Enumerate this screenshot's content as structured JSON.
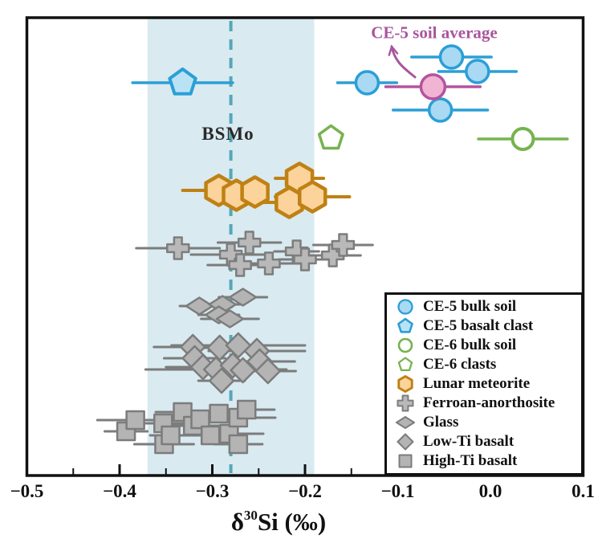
{
  "annotation": {
    "text": "CE-5 soil average",
    "color": "#a8569c"
  },
  "bsmo": {
    "label": "BSMo",
    "x": -0.28,
    "color": "#55a7b7",
    "text_color": "#2a2a2a"
  },
  "axis_title": {
    "delta": "δ",
    "superscript": "30",
    "rest": "Si (‰)"
  },
  "chart_data": {
    "type": "scatter",
    "title": "",
    "xlabel": "δ30Si (‰)",
    "ylabel": "",
    "xlim": [
      -0.5,
      0.1
    ],
    "x_ticks": [
      -0.5,
      -0.4,
      -0.3,
      -0.2,
      -0.1,
      0.0,
      0.1
    ],
    "x_tick_labels": [
      "−0.5",
      "−0.4",
      "−0.3",
      "−0.2",
      "−0.1",
      "0.0",
      "0.1"
    ],
    "minor_tick_step": 0.05,
    "grid": false,
    "legend_position": "lower right",
    "shaded_band": {
      "x_from": -0.37,
      "x_to": -0.19,
      "color": "#d9eaf1"
    },
    "reference_line": {
      "label": "BSMo",
      "x": -0.28,
      "style": "dashed",
      "color": "#55a7b7"
    },
    "series": [
      {
        "name": "CE-5 bulk soil",
        "in_legend": true,
        "marker": {
          "type": "circle",
          "w": 28,
          "h": 28,
          "sw": 3.5,
          "fill": "#a9d9f3",
          "stroke": "#2b9fd6",
          "lw": 17,
          "lh": 17
        },
        "errorbar": {
          "color": "#2b9fd6",
          "width": 3.5
        },
        "points": [
          {
            "x": -0.042,
            "err": 0.043,
            "y": 71
          },
          {
            "x": -0.014,
            "err": 0.042,
            "y": 89
          },
          {
            "x": -0.133,
            "err": 0.032,
            "y": 103
          },
          {
            "x": -0.054,
            "err": 0.051,
            "y": 137
          }
        ]
      },
      {
        "name": "CE-5 basalt clast",
        "in_legend": true,
        "marker": {
          "type": "pentagon",
          "w": 34,
          "h": 34,
          "sw": 4,
          "fill": "#b9e2f4",
          "stroke": "#2b9fd6",
          "lw": 18,
          "lh": 18
        },
        "errorbar": {
          "color": "#2b9fd6",
          "width": 3.5
        },
        "points": [
          {
            "x": -0.332,
            "err": 0.054,
            "y": 103
          }
        ]
      },
      {
        "name": "CE-6 bulk soil",
        "in_legend": true,
        "marker": {
          "type": "circle",
          "w": 26,
          "h": 26,
          "sw": 4,
          "fill": "#ffffff",
          "stroke": "#76b34f",
          "lw": 16,
          "lh": 16
        },
        "errorbar": {
          "color": "#76b34f",
          "width": 3.5
        },
        "points": [
          {
            "x": 0.035,
            "err": 0.048,
            "y": 173
          }
        ]
      },
      {
        "name": "CE-6 clasts",
        "in_legend": true,
        "marker": {
          "type": "pentagon",
          "w": 31,
          "h": 31,
          "sw": 3.5,
          "fill": "#ffffff",
          "stroke": "#76b34f",
          "lw": 17,
          "lh": 17
        },
        "errorbar": {
          "color": "#76b34f",
          "width": 3.5
        },
        "points": [
          {
            "x": -0.172,
            "err": 0,
            "y": 172
          }
        ]
      },
      {
        "name": "Lunar meteorite",
        "in_legend": true,
        "marker": {
          "type": "hexagon",
          "w": 32,
          "h": 37,
          "sw": 4.5,
          "fill": "#fbd39b",
          "stroke": "#bf8114",
          "lw": 17,
          "lh": 19
        },
        "errorbar": {
          "color": "#bf8114",
          "width": 4
        },
        "points": [
          {
            "x": -0.293,
            "err": 0.039,
            "y": 237
          },
          {
            "x": -0.274,
            "err": 0,
            "y": 243
          },
          {
            "x": -0.254,
            "err": 0,
            "y": 239
          },
          {
            "x": -0.206,
            "err": 0.026,
            "y": 222
          },
          {
            "x": -0.217,
            "err": 0.032,
            "y": 252
          },
          {
            "x": -0.192,
            "err": 0.04,
            "y": 245
          }
        ]
      },
      {
        "name": "Ferroan-anorthosite",
        "in_legend": true,
        "marker": {
          "type": "cross",
          "w": 27,
          "h": 27,
          "sw": 2.5,
          "fill": "#b9b9b9",
          "stroke": "#7d7d7d",
          "lw": 19,
          "lh": 19
        },
        "errorbar": {
          "color": "#7c7c7c",
          "width": 3
        },
        "points": [
          {
            "x": -0.337,
            "err": 0.045,
            "y": 309
          },
          {
            "x": -0.28,
            "err": 0.043,
            "y": 317
          },
          {
            "x": -0.26,
            "err": 0.034,
            "y": 302
          },
          {
            "x": -0.27,
            "err": 0.035,
            "y": 330
          },
          {
            "x": -0.239,
            "err": 0.037,
            "y": 328
          },
          {
            "x": -0.209,
            "err": 0.024,
            "y": 313
          },
          {
            "x": -0.2,
            "err": 0.028,
            "y": 323
          },
          {
            "x": -0.17,
            "err": 0.03,
            "y": 318
          },
          {
            "x": -0.159,
            "err": 0.032,
            "y": 305
          }
        ]
      },
      {
        "name": "Glass",
        "in_legend": true,
        "marker": {
          "type": "thin_diamond",
          "w": 33,
          "h": 21,
          "sw": 2.5,
          "fill": "#b4b4b4",
          "stroke": "#7c7c7c",
          "lw": 22,
          "lh": 14
        },
        "errorbar": {
          "color": "#7c7c7c",
          "width": 3
        },
        "points": [
          {
            "x": -0.314,
            "err": 0.021,
            "y": 381
          },
          {
            "x": -0.289,
            "err": 0.019,
            "y": 379
          },
          {
            "x": -0.267,
            "err": 0.026,
            "y": 370
          },
          {
            "x": -0.293,
            "err": 0.022,
            "y": 392
          },
          {
            "x": -0.281,
            "err": 0.031,
            "y": 397
          }
        ]
      },
      {
        "name": "Low-Ti basalt",
        "in_legend": true,
        "marker": {
          "type": "diamond",
          "w": 30,
          "h": 30,
          "sw": 2.5,
          "fill": "#b4b4b4",
          "stroke": "#7c7c7c",
          "lw": 19,
          "lh": 19
        },
        "errorbar": {
          "color": "#7c7c7c",
          "width": 3
        },
        "points": [
          {
            "x": -0.321,
            "err": 0.042,
            "y": 432
          },
          {
            "x": -0.292,
            "err": 0.036,
            "y": 433
          },
          {
            "x": -0.272,
            "err": 0.072,
            "y": 430
          },
          {
            "x": -0.252,
            "err": 0.052,
            "y": 437
          },
          {
            "x": -0.319,
            "err": 0.033,
            "y": 446
          },
          {
            "x": -0.31,
            "err": 0.04,
            "y": 457
          },
          {
            "x": -0.296,
            "err": 0.076,
            "y": 460
          },
          {
            "x": -0.278,
            "err": 0.04,
            "y": 455
          },
          {
            "x": -0.267,
            "err": 0.045,
            "y": 461
          },
          {
            "x": -0.249,
            "err": 0.038,
            "y": 450
          },
          {
            "x": -0.24,
            "err": 0.03,
            "y": 462
          },
          {
            "x": -0.29,
            "err": 0.025,
            "y": 474
          }
        ]
      },
      {
        "name": "High-Ti basalt",
        "in_legend": true,
        "marker": {
          "type": "square",
          "w": 22,
          "h": 22,
          "sw": 2.5,
          "fill": "#b4b4b4",
          "stroke": "#7c7c7c",
          "lw": 15,
          "lh": 15
        },
        "errorbar": {
          "color": "#7c7c7c",
          "width": 3
        },
        "points": [
          {
            "x": -0.393,
            "err": 0.023,
            "y": 537
          },
          {
            "x": -0.383,
            "err": 0.041,
            "y": 523
          },
          {
            "x": -0.353,
            "err": 0.025,
            "y": 527
          },
          {
            "x": -0.352,
            "err": 0.032,
            "y": 553
          },
          {
            "x": -0.345,
            "err": 0.022,
            "y": 542
          },
          {
            "x": -0.332,
            "err": 0.029,
            "y": 513
          },
          {
            "x": -0.321,
            "err": 0.028,
            "y": 530
          },
          {
            "x": -0.313,
            "err": 0.025,
            "y": 522
          },
          {
            "x": -0.302,
            "err": 0.03,
            "y": 542
          },
          {
            "x": -0.293,
            "err": 0.028,
            "y": 515
          },
          {
            "x": -0.282,
            "err": 0.037,
            "y": 540
          },
          {
            "x": -0.272,
            "err": 0.026,
            "y": 553
          },
          {
            "x": -0.272,
            "err": 0.04,
            "y": 520
          },
          {
            "x": -0.263,
            "err": 0.03,
            "y": 510
          }
        ]
      },
      {
        "name": "CE-5 soil average",
        "in_legend": false,
        "marker": {
          "type": "circle",
          "w": 30,
          "h": 30,
          "sw": 3.5,
          "fill": "#f1b4d3",
          "stroke": "#b5539f",
          "lw": 17,
          "lh": 17
        },
        "errorbar": {
          "color": "#b5539f",
          "width": 3.5
        },
        "points": [
          {
            "x": -0.062,
            "err": 0.051,
            "y": 108
          }
        ]
      }
    ]
  }
}
